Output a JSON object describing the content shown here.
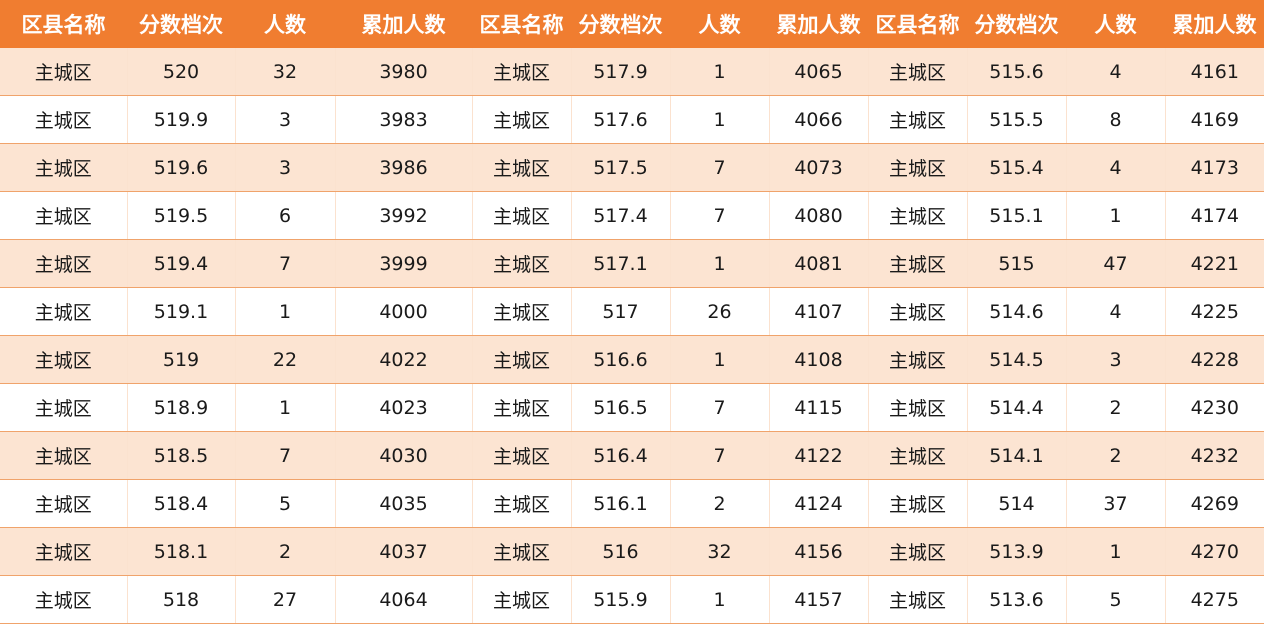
{
  "headers": [
    "区县名称",
    "分数档次",
    "人数",
    "累加人数",
    "区县名称",
    "分数档次",
    "人数",
    "累加人数",
    "区县名称",
    "分数档次",
    "人数",
    "累加人数"
  ],
  "rows": [
    [
      "主城区",
      "520",
      "32",
      "3980",
      "主城区",
      "517.9",
      "1",
      "4065",
      "主城区",
      "515.6",
      "4",
      "4161"
    ],
    [
      "主城区",
      "519.9",
      "3",
      "3983",
      "主城区",
      "517.6",
      "1",
      "4066",
      "主城区",
      "515.5",
      "8",
      "4169"
    ],
    [
      "主城区",
      "519.6",
      "3",
      "3986",
      "主城区",
      "517.5",
      "7",
      "4073",
      "主城区",
      "515.4",
      "4",
      "4173"
    ],
    [
      "主城区",
      "519.5",
      "6",
      "3992",
      "主城区",
      "517.4",
      "7",
      "4080",
      "主城区",
      "515.1",
      "1",
      "4174"
    ],
    [
      "主城区",
      "519.4",
      "7",
      "3999",
      "主城区",
      "517.1",
      "1",
      "4081",
      "主城区",
      "515",
      "47",
      "4221"
    ],
    [
      "主城区",
      "519.1",
      "1",
      "4000",
      "主城区",
      "517",
      "26",
      "4107",
      "主城区",
      "514.6",
      "4",
      "4225"
    ],
    [
      "主城区",
      "519",
      "22",
      "4022",
      "主城区",
      "516.6",
      "1",
      "4108",
      "主城区",
      "514.5",
      "3",
      "4228"
    ],
    [
      "主城区",
      "518.9",
      "1",
      "4023",
      "主城区",
      "516.5",
      "7",
      "4115",
      "主城区",
      "514.4",
      "2",
      "4230"
    ],
    [
      "主城区",
      "518.5",
      "7",
      "4030",
      "主城区",
      "516.4",
      "7",
      "4122",
      "主城区",
      "514.1",
      "2",
      "4232"
    ],
    [
      "主城区",
      "518.4",
      "5",
      "4035",
      "主城区",
      "516.1",
      "2",
      "4124",
      "主城区",
      "514",
      "37",
      "4269"
    ],
    [
      "主城区",
      "518.1",
      "2",
      "4037",
      "主城区",
      "516",
      "32",
      "4156",
      "主城区",
      "513.9",
      "1",
      "4270"
    ],
    [
      "主城区",
      "518",
      "27",
      "4064",
      "主城区",
      "515.9",
      "1",
      "4157",
      "主城区",
      "513.6",
      "5",
      "4275"
    ]
  ],
  "colors": {
    "header_bg": "#f07d30",
    "header_text": "#ffffff",
    "row_odd_bg": "#fce4d2",
    "row_even_bg": "#ffffff",
    "row_border": "#f0a36b"
  }
}
